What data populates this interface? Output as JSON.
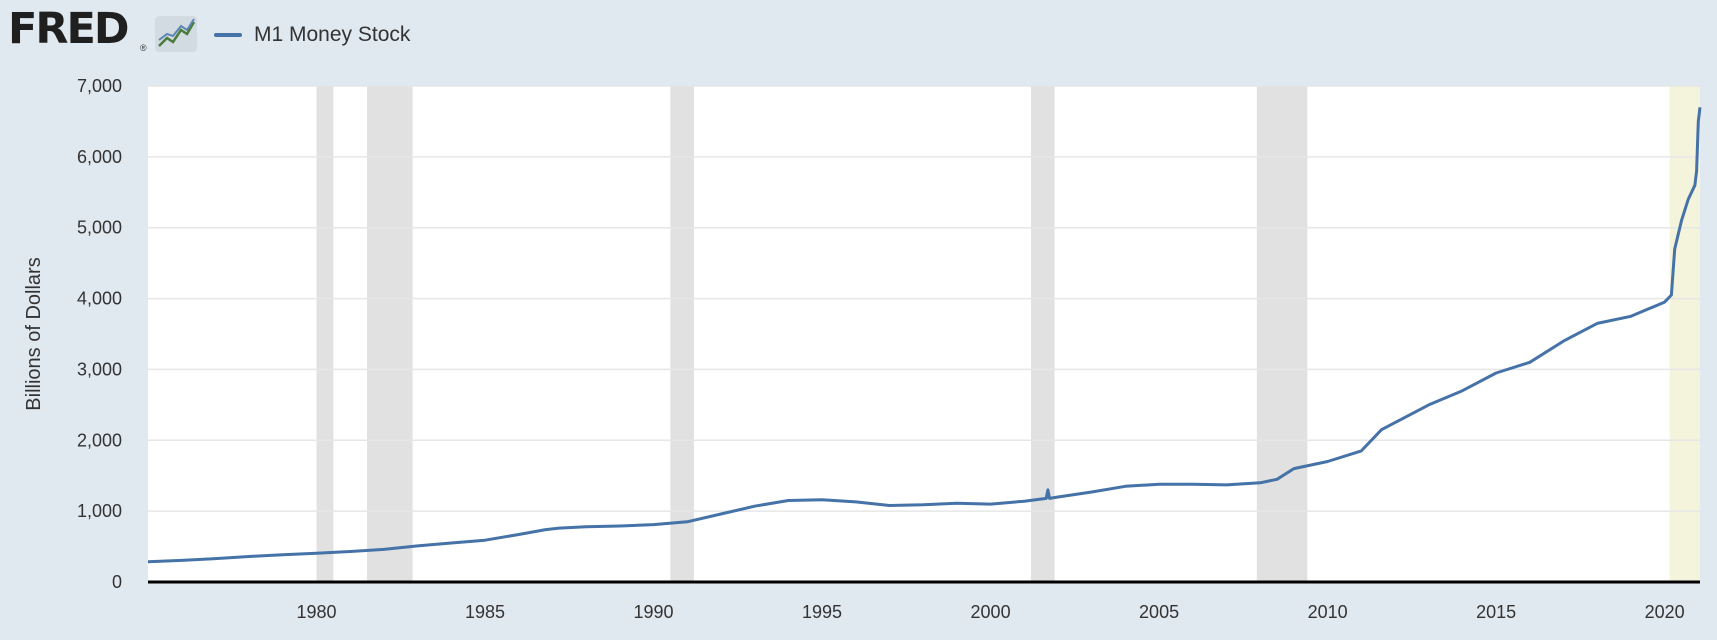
{
  "header": {
    "logo_text": "FRED",
    "logo_registered": "®",
    "logo_icon": "fred-line-graph-icon"
  },
  "colors": {
    "background": "#e1e9f0",
    "plot_area": "#ffffff",
    "series": "#4572a7",
    "recession": "#e1e1e1",
    "highlight": "#f4f4dc",
    "gridline": "#e6e6e6",
    "axis_line": "#000000"
  },
  "chart_data": {
    "type": "line",
    "title": "",
    "xlabel": "",
    "ylabel": "Billions of Dollars",
    "xlim": [
      1975.0,
      2021.05
    ],
    "ylim": [
      0,
      7000
    ],
    "grid": true,
    "legend_position": "top-left",
    "y_ticks": [
      0,
      1000,
      2000,
      3000,
      4000,
      5000,
      6000,
      7000
    ],
    "y_tick_labels": [
      "0",
      "1,000",
      "2,000",
      "3,000",
      "4,000",
      "5,000",
      "6,000",
      "7,000"
    ],
    "x_ticks": [
      1980,
      1985,
      1990,
      1995,
      2000,
      2005,
      2010,
      2015,
      2020
    ],
    "x_tick_labels": [
      "1980",
      "1985",
      "1990",
      "1995",
      "2000",
      "2005",
      "2010",
      "2015",
      "2020"
    ],
    "recession_shading": [
      {
        "start": 1980.0,
        "end": 1980.5
      },
      {
        "start": 1981.5,
        "end": 1982.85
      },
      {
        "start": 1990.5,
        "end": 1991.2
      },
      {
        "start": 2001.2,
        "end": 2001.9
      },
      {
        "start": 2007.9,
        "end": 2009.4
      }
    ],
    "highlighted_period": {
      "start": 2020.15,
      "end": 2021.05
    },
    "series": [
      {
        "name": "M1 Money Stock",
        "x": [
          1975,
          1976,
          1977,
          1978,
          1979,
          1980,
          1981,
          1982,
          1983,
          1984,
          1985,
          1986,
          1986.8,
          1987.2,
          1988,
          1989,
          1990,
          1991,
          1992,
          1993,
          1994,
          1995,
          1996,
          1997,
          1998,
          1999,
          2000,
          2001,
          2001.65,
          2001.7,
          2001.75,
          2002,
          2003,
          2004,
          2005,
          2006,
          2007,
          2008,
          2008.5,
          2009,
          2010,
          2011,
          2011.6,
          2012,
          2013,
          2014,
          2015,
          2016,
          2017,
          2018,
          2019,
          2020.0,
          2020.2,
          2020.3,
          2020.5,
          2020.7,
          2020.9,
          2020.95,
          2021.0,
          2021.05
        ],
        "y": [
          287,
          305,
          330,
          360,
          385,
          405,
          430,
          460,
          510,
          550,
          590,
          670,
          740,
          760,
          780,
          790,
          810,
          850,
          960,
          1070,
          1150,
          1160,
          1130,
          1080,
          1090,
          1110,
          1100,
          1140,
          1180,
          1300,
          1180,
          1200,
          1270,
          1350,
          1380,
          1380,
          1370,
          1400,
          1450,
          1600,
          1700,
          1850,
          2150,
          2250,
          2500,
          2700,
          2950,
          3100,
          3400,
          3650,
          3750,
          3950,
          4050,
          4700,
          5100,
          5400,
          5600,
          5800,
          6500,
          6700
        ]
      }
    ]
  }
}
